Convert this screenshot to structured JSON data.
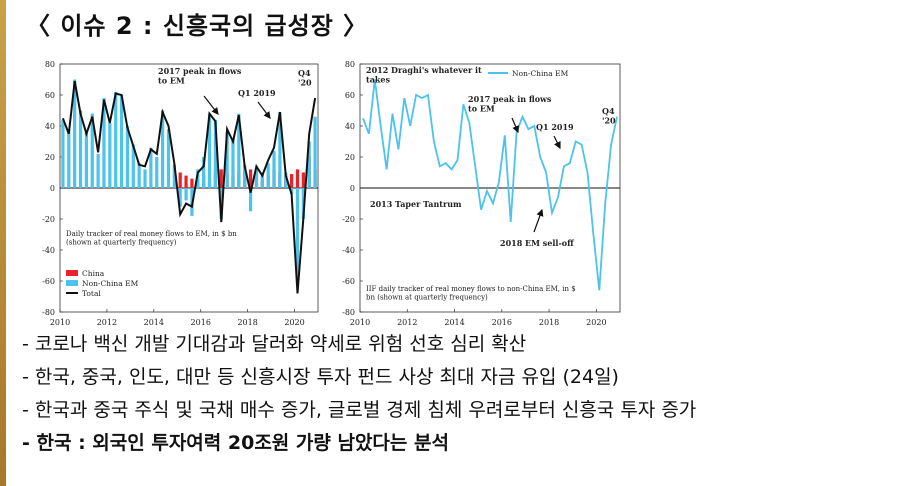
{
  "title": "〈 이슈 2 : 신흥국의 급성장 〉",
  "bullets": [
    "- 코로나 백신 개발 기대감과 달러화 약세로 위험 선호 심리 확산",
    "- 한국, 중국, 인도, 대만 등 신흥시장 투자 펀드 사상 최대 자금 유입 (24일)",
    "- 한국과 중국 주식 및 국채 매수 증가, 글로벌 경제 침체 우려로부터 신흥국 투자 증가",
    "- 한국 : 외국인 투자여력 20조원 가량 남았다는 분석"
  ],
  "chart_data": [
    {
      "type": "bar",
      "ylim": [
        -80,
        80
      ],
      "yticks": [
        80,
        60,
        40,
        20,
        0,
        -20,
        -40,
        -60,
        -80
      ],
      "xticks": [
        "2010",
        "2012",
        "2014",
        "2016",
        "2018",
        "2020"
      ],
      "note": "Daily tracker of real money flows to EM, in $ bn (shown at quarterly frequency)",
      "annotations": [
        "2017 peak in flows to EM",
        "Q1 2019",
        "Q4 '20"
      ],
      "series": [
        {
          "name": "China",
          "color": "#e8212a",
          "x": [
            2015.0,
            2015.25,
            2015.5,
            2015.75,
            2016.0,
            2016.25,
            2016.5,
            2016.75,
            2017.0,
            2017.25,
            2017.5,
            2017.75,
            2018.0,
            2018.25,
            2018.5,
            2018.75,
            2019.0,
            2019.25,
            2019.5,
            2019.75,
            2020.0,
            2020.25,
            2020.5,
            2020.75
          ],
          "values": [
            10,
            8,
            6,
            4,
            8,
            6,
            10,
            12,
            9,
            8,
            10,
            11,
            12,
            9,
            5,
            8,
            12,
            10,
            8,
            9,
            12,
            10,
            20,
            12
          ]
        },
        {
          "name": "Non-China EM",
          "color": "#4cc3ec",
          "x": [
            2010.0,
            2010.25,
            2010.5,
            2010.75,
            2011.0,
            2011.25,
            2011.5,
            2011.75,
            2012.0,
            2012.25,
            2012.5,
            2012.75,
            2013.0,
            2013.25,
            2013.5,
            2013.75,
            2014.0,
            2014.25,
            2014.5,
            2014.75,
            2015.0,
            2015.25,
            2015.5,
            2015.75,
            2016.0,
            2016.25,
            2016.5,
            2016.75,
            2017.0,
            2017.25,
            2017.5,
            2017.75,
            2018.0,
            2018.25,
            2018.5,
            2018.75,
            2019.0,
            2019.25,
            2019.5,
            2019.75,
            2020.0,
            2020.25,
            2020.5,
            2020.75
          ],
          "values": [
            44,
            38,
            70,
            50,
            36,
            48,
            22,
            58,
            42,
            62,
            60,
            40,
            28,
            16,
            12,
            26,
            20,
            50,
            38,
            15,
            -12,
            -8,
            -18,
            12,
            20,
            48,
            44,
            -20,
            36,
            32,
            48,
            15,
            -15,
            12,
            10,
            16,
            24,
            49,
            10,
            -4,
            -60,
            -20,
            30,
            46
          ]
        },
        {
          "name": "Total",
          "color": "#111111",
          "x": [
            2010.0,
            2010.25,
            2010.5,
            2010.75,
            2011.0,
            2011.25,
            2011.5,
            2011.75,
            2012.0,
            2012.25,
            2012.5,
            2012.75,
            2013.0,
            2013.25,
            2013.5,
            2013.75,
            2014.0,
            2014.25,
            2014.5,
            2014.75,
            2015.0,
            2015.25,
            2015.5,
            2015.75,
            2016.0,
            2016.25,
            2016.5,
            2016.75,
            2017.0,
            2017.25,
            2017.5,
            2017.75,
            2018.0,
            2018.25,
            2018.5,
            2018.75,
            2019.0,
            2019.25,
            2019.5,
            2019.75,
            2020.0,
            2020.25,
            2020.5,
            2020.75
          ],
          "values": [
            45,
            35,
            69,
            48,
            35,
            46,
            23,
            57,
            42,
            61,
            60,
            39,
            27,
            15,
            14,
            25,
            22,
            49,
            40,
            16,
            -17,
            -10,
            -12,
            10,
            14,
            48,
            43,
            -22,
            38,
            30,
            47,
            14,
            -3,
            14,
            8,
            18,
            26,
            49,
            8,
            -4,
            -68,
            -20,
            35,
            58
          ]
        }
      ]
    },
    {
      "type": "line",
      "ylim": [
        -80,
        80
      ],
      "yticks": [
        80,
        60,
        40,
        20,
        0,
        -20,
        -40,
        -60,
        -80
      ],
      "xticks": [
        "2010",
        "2012",
        "2014",
        "2016",
        "2018",
        "2020"
      ],
      "note": "IIF daily tracker of real money flows to non-China EM, in $ bn (shown at quarterly frequency)",
      "annotations": [
        "2012 Draghi's whatever it takes",
        "2013 Taper Tantrum",
        "2017 peak in flows to EM",
        "Q1 2019",
        "2018 EM sell-off",
        "Q4 '20"
      ],
      "series": [
        {
          "name": "Non-China EM",
          "color": "#4cc3ec",
          "x": [
            2010.0,
            2010.25,
            2010.5,
            2010.75,
            2011.0,
            2011.25,
            2011.5,
            2011.75,
            2012.0,
            2012.25,
            2012.5,
            2012.75,
            2013.0,
            2013.25,
            2013.5,
            2013.75,
            2014.0,
            2014.25,
            2014.5,
            2014.75,
            2015.0,
            2015.25,
            2015.5,
            2015.75,
            2016.0,
            2016.25,
            2016.5,
            2016.75,
            2017.0,
            2017.25,
            2017.5,
            2017.75,
            2018.0,
            2018.25,
            2018.5,
            2018.75,
            2019.0,
            2019.25,
            2019.5,
            2019.75,
            2020.0,
            2020.25,
            2020.5,
            2020.75
          ],
          "values": [
            45,
            35,
            70,
            40,
            12,
            48,
            25,
            58,
            40,
            60,
            58,
            60,
            30,
            14,
            16,
            12,
            18,
            54,
            42,
            14,
            -14,
            -2,
            -10,
            4,
            34,
            -22,
            36,
            46,
            38,
            40,
            20,
            10,
            -16,
            -6,
            14,
            16,
            30,
            28,
            10,
            -30,
            -66,
            -10,
            28,
            46
          ]
        }
      ]
    }
  ]
}
